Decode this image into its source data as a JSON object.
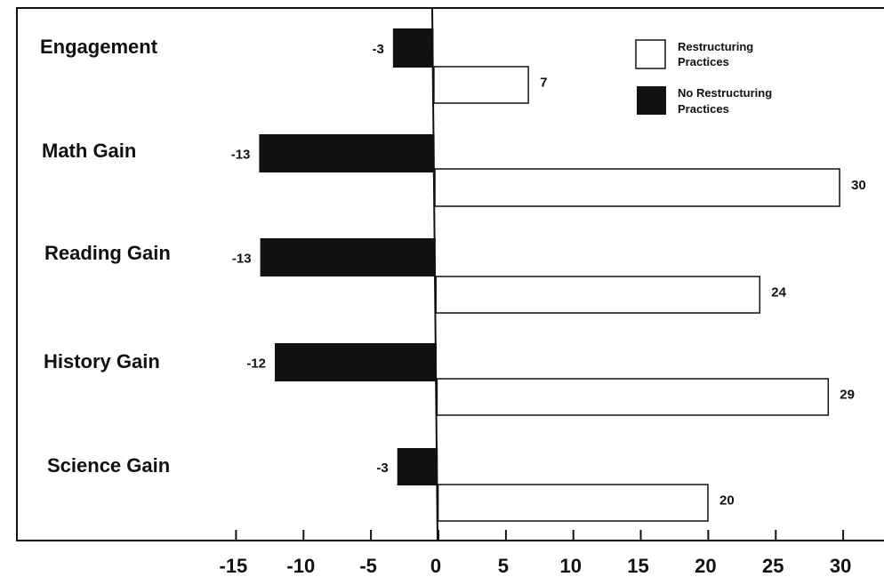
{
  "chart_data": {
    "type": "bar",
    "orientation": "horizontal",
    "categories": [
      "Engagement",
      "Math Gain",
      "Reading Gain",
      "History Gain",
      "Science Gain"
    ],
    "series": [
      {
        "name": "Restructuring Practices",
        "values": [
          7,
          30,
          24,
          29,
          20
        ],
        "labels": [
          "7",
          "30",
          "24",
          "29",
          "20"
        ],
        "color": "#ffffff"
      },
      {
        "name": "No Restructuring Practices",
        "values": [
          -3,
          -13,
          -13,
          -12,
          -3
        ],
        "labels": [
          "-3",
          "-13",
          "-13",
          "-12",
          "-3"
        ],
        "color": "#111111"
      }
    ],
    "legend": {
      "restructuring": [
        "Restructuring",
        "Practices"
      ],
      "no_restructuring": [
        "No Restructuring",
        "Practices"
      ],
      "position": "top-right"
    },
    "xticks": [
      "-15",
      "-10",
      "-5",
      "0",
      "5",
      "10",
      "15",
      "20",
      "25",
      "30"
    ],
    "xlim": [
      -15,
      30
    ],
    "grid": false,
    "title": "",
    "xlabel": "",
    "ylabel": ""
  }
}
